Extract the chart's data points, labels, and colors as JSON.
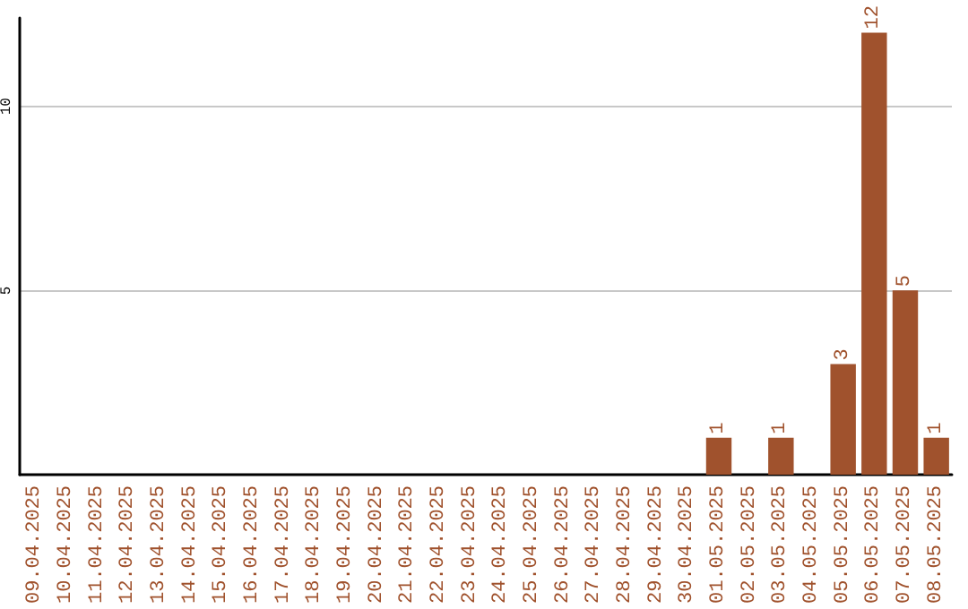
{
  "chart_data": {
    "type": "bar",
    "categories": [
      "09.04.2025",
      "10.04.2025",
      "11.04.2025",
      "12.04.2025",
      "13.04.2025",
      "14.04.2025",
      "15.04.2025",
      "16.04.2025",
      "17.04.2025",
      "18.04.2025",
      "19.04.2025",
      "20.04.2025",
      "21.04.2025",
      "22.04.2025",
      "23.04.2025",
      "24.04.2025",
      "25.04.2025",
      "26.04.2025",
      "27.04.2025",
      "28.04.2025",
      "29.04.2025",
      "30.04.2025",
      "01.05.2025",
      "02.05.2025",
      "03.05.2025",
      "04.05.2025",
      "05.05.2025",
      "06.05.2025",
      "07.05.2025",
      "08.05.2025"
    ],
    "values": [
      0,
      0,
      0,
      0,
      0,
      0,
      0,
      0,
      0,
      0,
      0,
      0,
      0,
      0,
      0,
      0,
      0,
      0,
      0,
      0,
      0,
      0,
      1,
      0,
      1,
      0,
      3,
      12,
      5,
      1
    ],
    "value_labels": [
      null,
      null,
      null,
      null,
      null,
      null,
      null,
      null,
      null,
      null,
      null,
      null,
      null,
      null,
      null,
      null,
      null,
      null,
      null,
      null,
      null,
      null,
      "1",
      null,
      "1",
      null,
      "3",
      "12",
      "5",
      "1"
    ],
    "color": "#a0522d",
    "ylim": [
      0,
      12.4
    ],
    "yticks": [
      5,
      10
    ],
    "grid": "y"
  }
}
